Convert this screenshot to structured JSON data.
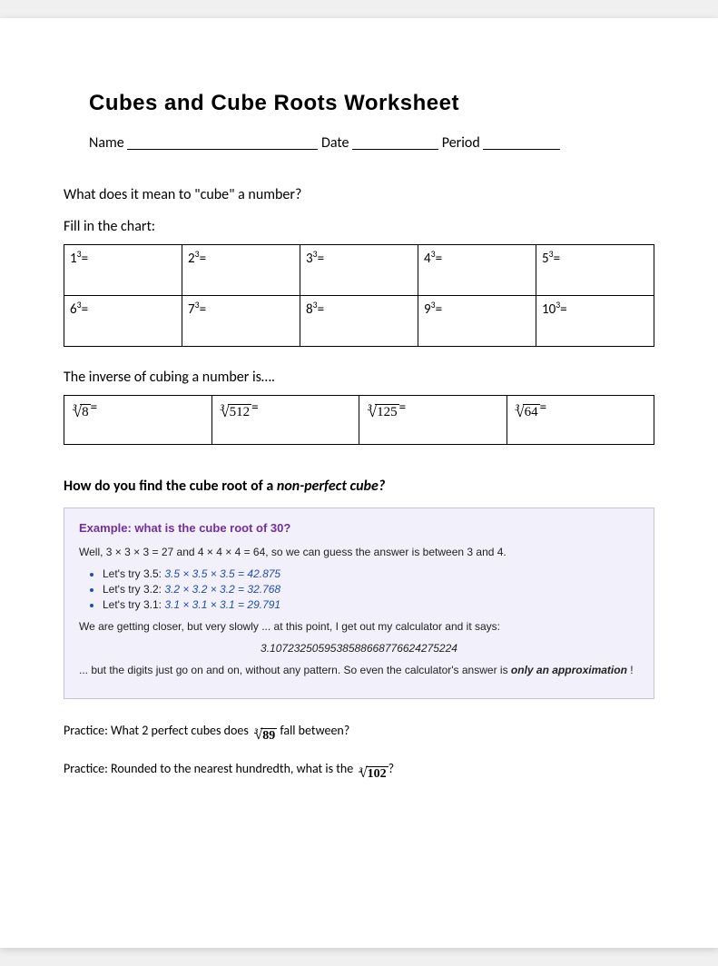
{
  "title": "Cubes and Cube Roots Worksheet",
  "header": {
    "name_label": "Name",
    "date_label": "Date",
    "period_label": "Period",
    "blank_widths": {
      "name": 210,
      "date": 95,
      "period": 85
    }
  },
  "q1": "What does it mean to \"cube\" a number?",
  "fill_label": "Fill in the chart:",
  "cubes_chart": {
    "rows": 2,
    "cols": 5,
    "cells": [
      [
        {
          "base": "1",
          "exp": "3"
        },
        {
          "base": "2",
          "exp": "3"
        },
        {
          "base": "3",
          "exp": "3"
        },
        {
          "base": "4",
          "exp": "3"
        },
        {
          "base": "5",
          "exp": "3"
        }
      ],
      [
        {
          "base": "6",
          "exp": "3"
        },
        {
          "base": "7",
          "exp": "3"
        },
        {
          "base": "8",
          "exp": "3"
        },
        {
          "base": "9",
          "exp": "3"
        },
        {
          "base": "10",
          "exp": "3"
        }
      ]
    ]
  },
  "inverse_text": "The inverse of cubing a number is….",
  "roots_chart": {
    "cells": [
      {
        "index": "3",
        "radicand": "8"
      },
      {
        "index": "3",
        "radicand": "512"
      },
      {
        "index": "3",
        "radicand": "125"
      },
      {
        "index": "3",
        "radicand": "64"
      }
    ]
  },
  "howdo_prefix": "How do you find the cube root of a ",
  "howdo_em": "non-perfect cube?",
  "example": {
    "title": "Example: what is the cube root of 30?",
    "intro": "Well, 3 × 3 × 3 = 27 and 4 × 4 × 4 = 64, so we can guess the answer is between 3 and 4.",
    "tries": [
      {
        "label": "Let's try 3.5: ",
        "eq": "3.5 × 3.5 × 3.5 = 42.875"
      },
      {
        "label": "Let's try 3.2: ",
        "eq": "3.2 × 3.2 × 3.2 = 32.768"
      },
      {
        "label": "Let's try 3.1: ",
        "eq": "3.1 × 3.1 × 3.1 = 29.791"
      }
    ],
    "closer": "We are getting closer, but very slowly ... at this point, I get out my calculator and it says:",
    "calc_value": "3.1072325059538588668776624275224",
    "tail_prefix": "... but the digits just go on and on, without any pattern. So even the calculator's answer is ",
    "tail_bold": "only an approximation",
    "tail_suffix": " !",
    "colors": {
      "background": "#f2f0fa",
      "border": "#c8c4d8",
      "title_color": "#7030a0",
      "bullet_color": "#1f4fb0"
    }
  },
  "practice1_prefix": "Practice: What 2 perfect cubes does ",
  "practice1_root": {
    "index": "3",
    "radicand": "89"
  },
  "practice1_suffix": " fall between?",
  "practice2_prefix": "Practice: Rounded to the nearest hundredth, what is the ",
  "practice2_root": {
    "index": "3",
    "radicand": "102"
  },
  "practice2_suffix": "?"
}
